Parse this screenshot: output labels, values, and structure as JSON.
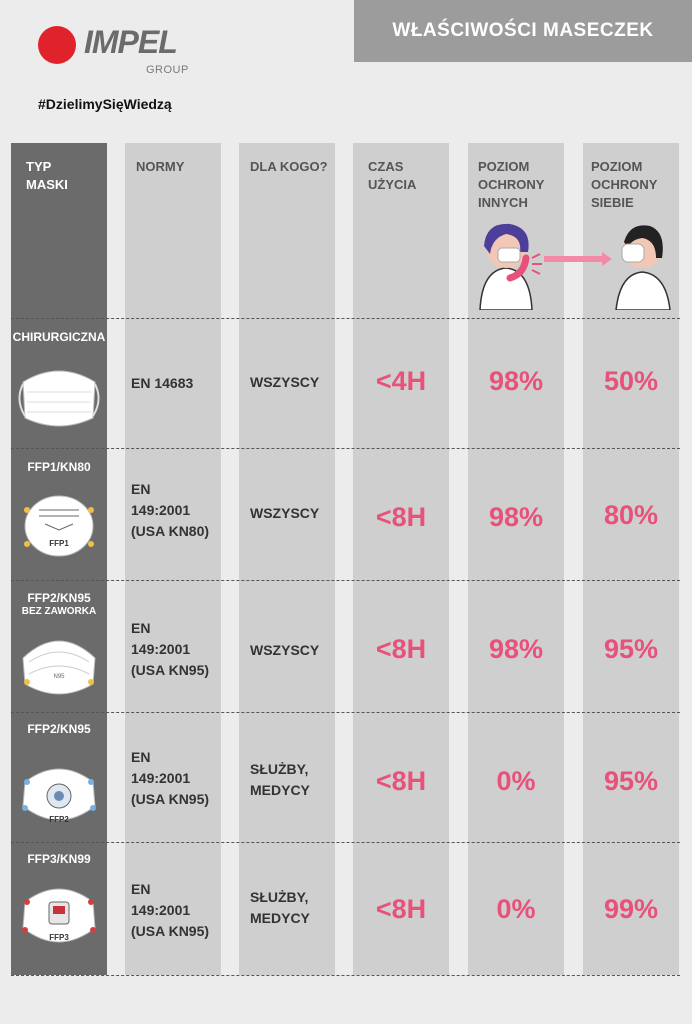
{
  "brand": {
    "name": "IMPEL",
    "sub": "GROUP",
    "hashtag": "#DzielimySięWiedzą"
  },
  "header": {
    "title": "WŁAŚCIWOŚCI MASECZEK"
  },
  "columns": [
    {
      "line1": "TYP",
      "line2": "MASKI",
      "line3": ""
    },
    {
      "line1": "NORMY",
      "line2": "",
      "line3": ""
    },
    {
      "line1": "DLA KOGO?",
      "line2": "",
      "line3": ""
    },
    {
      "line1": "CZAS",
      "line2": "UŻYCIA",
      "line3": ""
    },
    {
      "line1": "POZIOM",
      "line2": "OCHRONY",
      "line3": "INNYCH"
    },
    {
      "line1": "POZIOM",
      "line2": "OCHRONY",
      "line3": "SIEBIE"
    }
  ],
  "rows": [
    {
      "name": "CHIRURGICZNA",
      "sub": "",
      "mask_label": "",
      "norm1": "EN 14683",
      "norm2": "",
      "norm3": "",
      "who1": "WSZYSCY",
      "who2": "",
      "time": "<4H",
      "others": "98%",
      "self": "50%",
      "mask_icon": "surgical-mask-icon"
    },
    {
      "name": "FFP1/KN80",
      "sub": "",
      "mask_label": "FFP1",
      "norm1": "EN",
      "norm2": "149:2001",
      "norm3": "(USA KN80)",
      "who1": "WSZYSCY",
      "who2": "",
      "time": "<8H",
      "others": "98%",
      "self": "80%",
      "mask_icon": "ffp1-mask-icon"
    },
    {
      "name": "FFP2/KN95",
      "sub": "BEZ ZAWORKA",
      "mask_label": "N95",
      "norm1": "EN",
      "norm2": "149:2001",
      "norm3": "(USA KN95)",
      "who1": "WSZYSCY",
      "who2": "",
      "time": "<8H",
      "others": "98%",
      "self": "95%",
      "mask_icon": "n95-mask-icon"
    },
    {
      "name": "FFP2/KN95",
      "sub": "",
      "mask_label": "FFP2",
      "norm1": "EN",
      "norm2": "149:2001",
      "norm3": "(USA KN95)",
      "who1": "SŁUŻBY,",
      "who2": "MEDYCY",
      "time": "<8H",
      "others": "0%",
      "self": "95%",
      "mask_icon": "ffp2-valve-mask-icon"
    },
    {
      "name": "FFP3/KN99",
      "sub": "",
      "mask_label": "FFP3",
      "norm1": "EN",
      "norm2": "149:2001",
      "norm3": "(USA KN95)",
      "who1": "SŁUŻBY,",
      "who2": "MEDYCY",
      "time": "<8H",
      "others": "0%",
      "self": "99%",
      "mask_icon": "ffp3-valve-mask-icon"
    }
  ],
  "colors": {
    "accent": "#e8517a",
    "type_column": "#6b6b6b",
    "column": "#cfcfcf",
    "header_bar": "#9c9c9c",
    "logo_red": "#e0232b"
  }
}
